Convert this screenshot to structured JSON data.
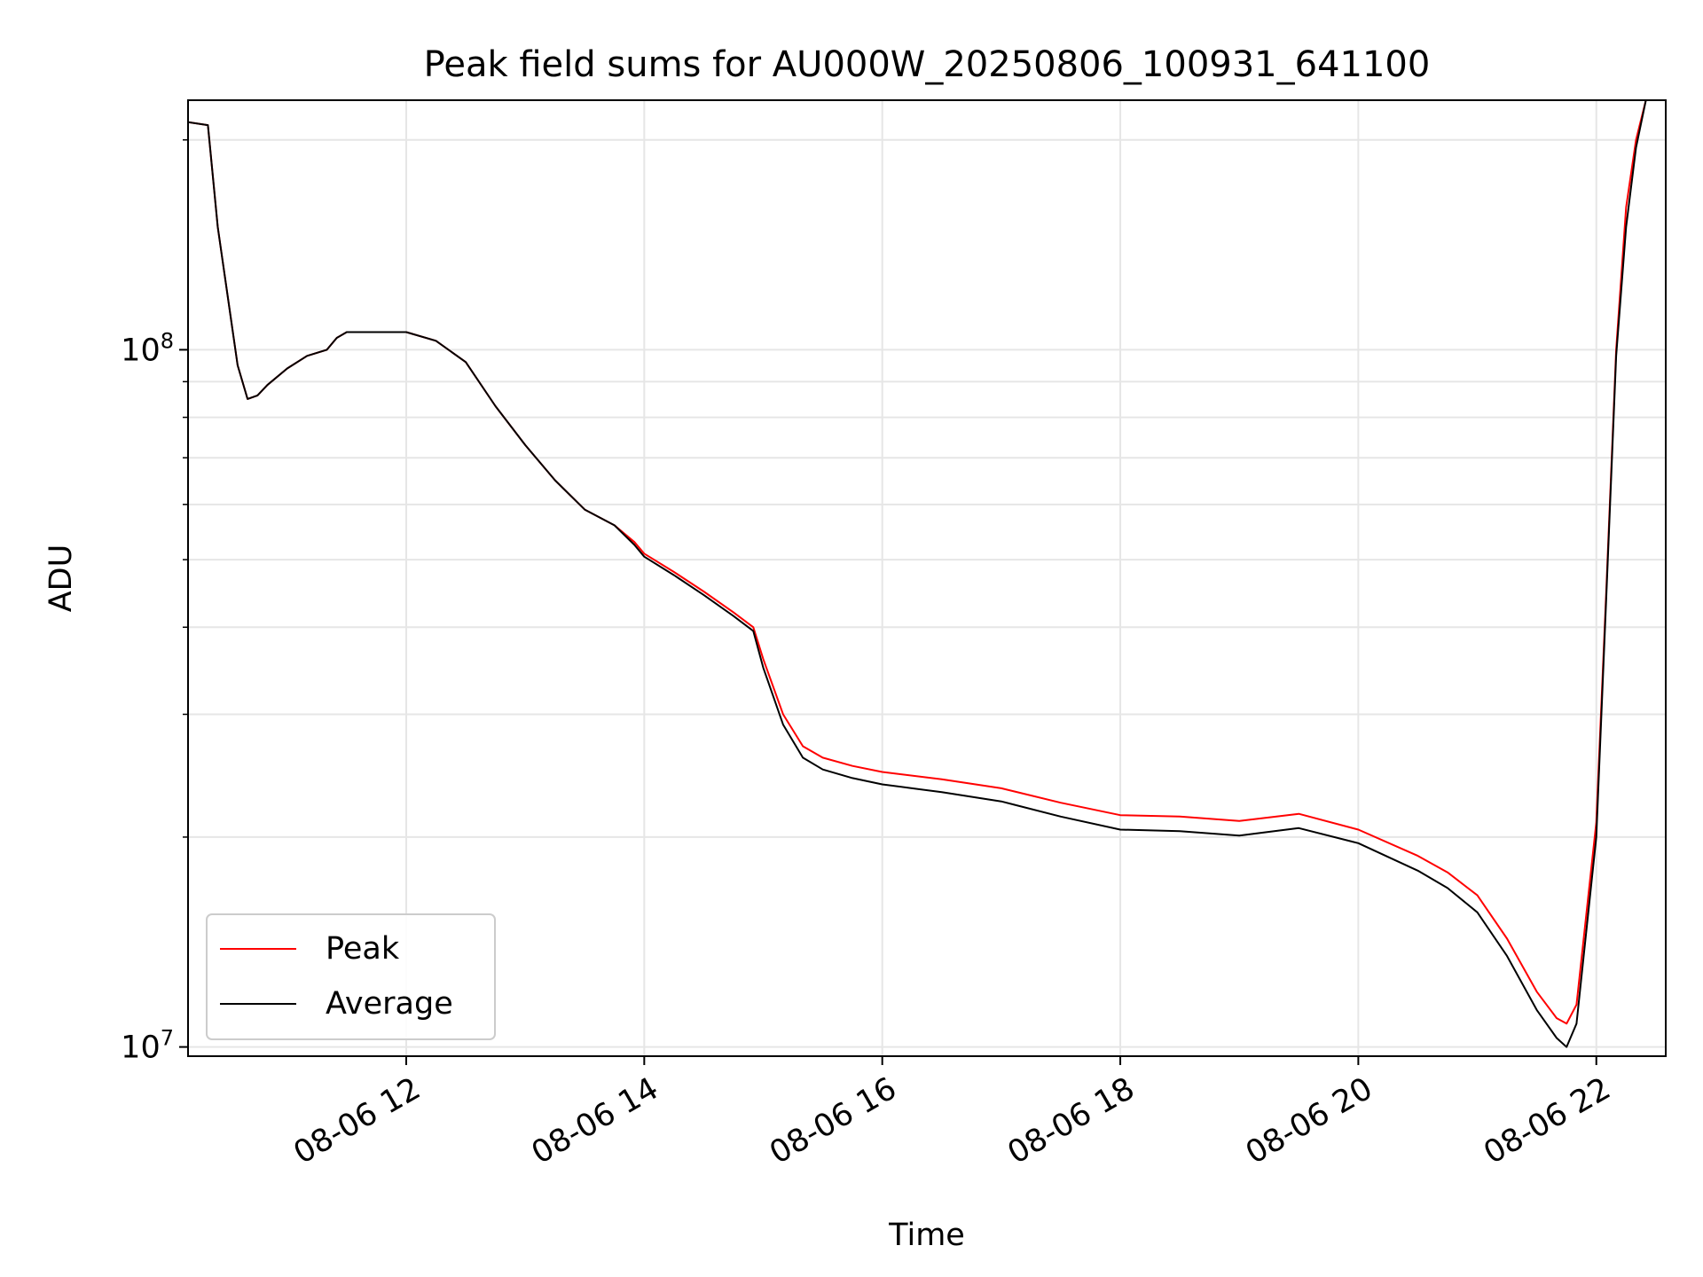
{
  "chart_data": {
    "type": "line",
    "title": "Peak field sums for AU000W_20250806_100931_641100",
    "xlabel": "Time",
    "ylabel": "ADU",
    "x_axis": {
      "type": "time",
      "range": [
        "2025-08-06 10:10",
        "2025-08-06 22:35"
      ],
      "ticks": [
        "2025-08-06 12:00",
        "2025-08-06 14:00",
        "2025-08-06 16:00",
        "2025-08-06 18:00",
        "2025-08-06 20:00",
        "2025-08-06 22:00"
      ],
      "tick_labels": [
        "08-06 12",
        "08-06 14",
        "08-06 16",
        "08-06 18",
        "08-06 20",
        "08-06 22"
      ]
    },
    "y_axis": {
      "scale": "log",
      "ylim": [
        9700000,
        228000000
      ],
      "ticks": [
        10000000,
        100000000
      ],
      "tick_labels": [
        {
          "base": "10",
          "exp": "7"
        },
        {
          "base": "10",
          "exp": "8"
        }
      ]
    },
    "grid": true,
    "legend": {
      "position": "lower-left"
    },
    "series": [
      {
        "name": "Peak",
        "color": "#ff0000",
        "x": [
          "2025-08-06 10:10",
          "2025-08-06 10:20",
          "2025-08-06 10:25",
          "2025-08-06 10:35",
          "2025-08-06 10:40",
          "2025-08-06 10:45",
          "2025-08-06 10:50",
          "2025-08-06 11:00",
          "2025-08-06 11:10",
          "2025-08-06 11:20",
          "2025-08-06 11:25",
          "2025-08-06 11:30",
          "2025-08-06 11:45",
          "2025-08-06 12:00",
          "2025-08-06 12:15",
          "2025-08-06 12:30",
          "2025-08-06 12:45",
          "2025-08-06 13:00",
          "2025-08-06 13:15",
          "2025-08-06 13:30",
          "2025-08-06 13:45",
          "2025-08-06 13:55",
          "2025-08-06 14:00",
          "2025-08-06 14:15",
          "2025-08-06 14:30",
          "2025-08-06 14:45",
          "2025-08-06 14:55",
          "2025-08-06 15:00",
          "2025-08-06 15:10",
          "2025-08-06 15:20",
          "2025-08-06 15:30",
          "2025-08-06 15:45",
          "2025-08-06 16:00",
          "2025-08-06 16:30",
          "2025-08-06 17:00",
          "2025-08-06 17:30",
          "2025-08-06 18:00",
          "2025-08-06 18:30",
          "2025-08-06 19:00",
          "2025-08-06 19:30",
          "2025-08-06 20:00",
          "2025-08-06 20:30",
          "2025-08-06 20:45",
          "2025-08-06 21:00",
          "2025-08-06 21:15",
          "2025-08-06 21:30",
          "2025-08-06 21:40",
          "2025-08-06 21:45",
          "2025-08-06 21:50",
          "2025-08-06 22:00",
          "2025-08-06 22:05",
          "2025-08-06 22:10",
          "2025-08-06 22:15",
          "2025-08-06 22:20",
          "2025-08-06 22:25",
          "2025-08-06 22:30"
        ],
        "values": [
          212000000,
          210000000,
          150000000,
          95000000,
          85000000,
          86000000,
          89000000,
          94000000,
          98000000,
          100000000,
          104000000,
          106000000,
          106000000,
          106000000,
          103000000,
          96000000,
          83000000,
          73000000,
          65000000,
          59000000,
          56000000,
          53000000,
          51000000,
          48000000,
          45000000,
          42000000,
          40000000,
          36000000,
          30000000,
          27000000,
          26000000,
          25300000,
          24800000,
          24200000,
          23500000,
          22400000,
          21500000,
          21400000,
          21100000,
          21600000,
          20500000,
          18800000,
          17800000,
          16500000,
          14300000,
          12000000,
          11000000,
          10800000,
          11500000,
          21000000,
          45000000,
          100000000,
          160000000,
          200000000,
          228000000,
          228000000
        ]
      },
      {
        "name": "Average",
        "color": "#000000",
        "x": [
          "2025-08-06 10:10",
          "2025-08-06 10:20",
          "2025-08-06 10:25",
          "2025-08-06 10:35",
          "2025-08-06 10:40",
          "2025-08-06 10:45",
          "2025-08-06 10:50",
          "2025-08-06 11:00",
          "2025-08-06 11:10",
          "2025-08-06 11:20",
          "2025-08-06 11:25",
          "2025-08-06 11:30",
          "2025-08-06 11:45",
          "2025-08-06 12:00",
          "2025-08-06 12:15",
          "2025-08-06 12:30",
          "2025-08-06 12:45",
          "2025-08-06 13:00",
          "2025-08-06 13:15",
          "2025-08-06 13:30",
          "2025-08-06 13:45",
          "2025-08-06 13:55",
          "2025-08-06 14:00",
          "2025-08-06 14:15",
          "2025-08-06 14:30",
          "2025-08-06 14:45",
          "2025-08-06 14:55",
          "2025-08-06 15:00",
          "2025-08-06 15:10",
          "2025-08-06 15:20",
          "2025-08-06 15:30",
          "2025-08-06 15:45",
          "2025-08-06 16:00",
          "2025-08-06 16:30",
          "2025-08-06 17:00",
          "2025-08-06 17:30",
          "2025-08-06 18:00",
          "2025-08-06 18:30",
          "2025-08-06 19:00",
          "2025-08-06 19:30",
          "2025-08-06 20:00",
          "2025-08-06 20:30",
          "2025-08-06 20:45",
          "2025-08-06 21:00",
          "2025-08-06 21:15",
          "2025-08-06 21:30",
          "2025-08-06 21:40",
          "2025-08-06 21:45",
          "2025-08-06 21:50",
          "2025-08-06 22:00",
          "2025-08-06 22:05",
          "2025-08-06 22:10",
          "2025-08-06 22:15",
          "2025-08-06 22:20",
          "2025-08-06 22:25",
          "2025-08-06 22:30"
        ],
        "values": [
          212000000,
          210000000,
          150000000,
          95000000,
          85000000,
          86000000,
          89000000,
          94000000,
          98000000,
          100000000,
          104000000,
          106000000,
          106000000,
          106000000,
          103000000,
          96000000,
          83000000,
          73000000,
          65000000,
          59000000,
          56000000,
          52500000,
          50500000,
          47500000,
          44500000,
          41500000,
          39500000,
          35000000,
          29000000,
          26000000,
          25000000,
          24300000,
          23800000,
          23200000,
          22500000,
          21400000,
          20500000,
          20400000,
          20100000,
          20600000,
          19600000,
          17900000,
          16900000,
          15600000,
          13500000,
          11300000,
          10300000,
          10000000,
          10800000,
          20000000,
          44000000,
          98000000,
          150000000,
          195000000,
          228000000,
          228000000
        ]
      }
    ]
  }
}
